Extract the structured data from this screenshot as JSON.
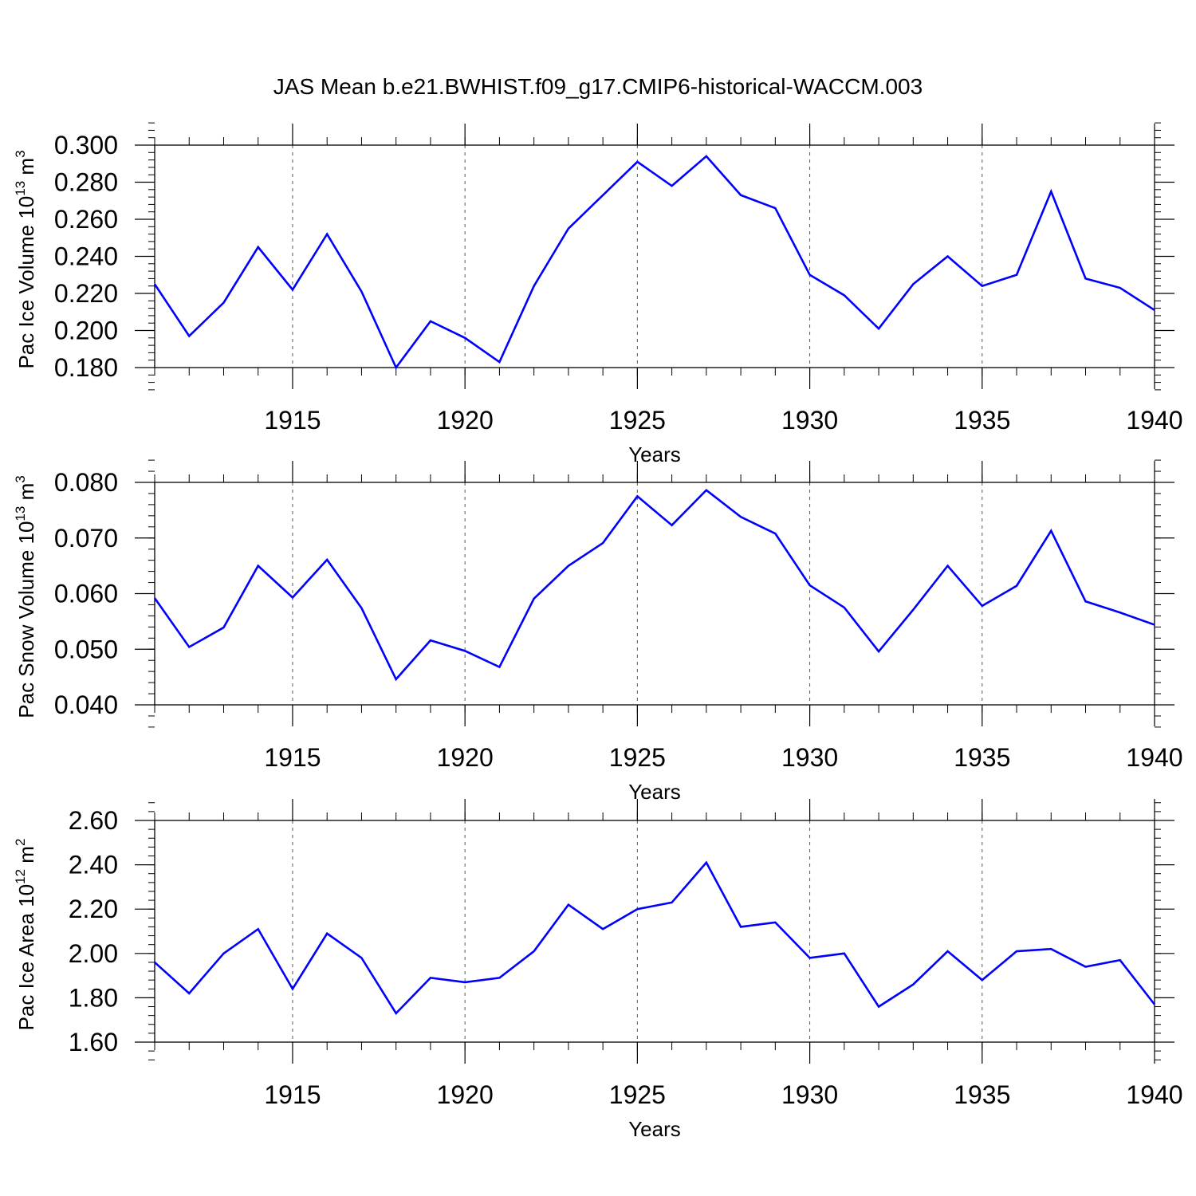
{
  "title": "JAS Mean b.e21.BWHIST.f09_g17.CMIP6-historical-WACCM.003",
  "line_color": "#0000ff",
  "chart_data": [
    {
      "type": "line",
      "ylabel": {
        "base": "Pac Ice Volume 10",
        "exp": "13",
        "unit": " m",
        "unit_exp": "3"
      },
      "xlabel": "Years",
      "xlim": [
        1911,
        1940
      ],
      "ylim": [
        0.18,
        0.3
      ],
      "yticks": [
        "0.180",
        "0.200",
        "0.220",
        "0.240",
        "0.260",
        "0.280",
        "0.300"
      ],
      "xticks": [
        "1915",
        "1920",
        "1925",
        "1930",
        "1935",
        "1940"
      ],
      "grid": "dashed vertical at labeled years",
      "x": [
        1911,
        1912,
        1913,
        1914,
        1915,
        1916,
        1917,
        1918,
        1919,
        1920,
        1921,
        1922,
        1923,
        1924,
        1925,
        1926,
        1927,
        1928,
        1929,
        1930,
        1931,
        1932,
        1933,
        1934,
        1935,
        1936,
        1937,
        1938,
        1939,
        1940
      ],
      "series": [
        {
          "values": [
            0.225,
            0.197,
            0.215,
            0.245,
            0.222,
            0.252,
            0.221,
            0.18,
            0.205,
            0.196,
            0.183,
            0.224,
            0.255,
            0.273,
            0.291,
            0.278,
            0.294,
            0.273,
            0.266,
            0.23,
            0.219,
            0.201,
            0.225,
            0.24,
            0.224,
            0.23,
            0.275,
            0.228,
            0.223,
            0.211
          ]
        }
      ]
    },
    {
      "type": "line",
      "ylabel": {
        "base": "Pac Snow Volume 10",
        "exp": "13",
        "unit": " m",
        "unit_exp": "3"
      },
      "xlabel": "Years",
      "xlim": [
        1911,
        1940
      ],
      "ylim": [
        0.04,
        0.08
      ],
      "yticks": [
        "0.040",
        "0.050",
        "0.060",
        "0.070",
        "0.080"
      ],
      "xticks": [
        "1915",
        "1920",
        "1925",
        "1930",
        "1935",
        "1940"
      ],
      "grid": "dashed vertical at labeled years",
      "x": [
        1911,
        1912,
        1913,
        1914,
        1915,
        1916,
        1917,
        1918,
        1919,
        1920,
        1921,
        1922,
        1923,
        1924,
        1925,
        1926,
        1927,
        1928,
        1929,
        1930,
        1931,
        1932,
        1933,
        1934,
        1935,
        1936,
        1937,
        1938,
        1939,
        1940
      ],
      "series": [
        {
          "values": [
            0.0592,
            0.0504,
            0.0539,
            0.065,
            0.0593,
            0.0661,
            0.0574,
            0.0446,
            0.0516,
            0.0497,
            0.0468,
            0.0591,
            0.065,
            0.0691,
            0.0775,
            0.0723,
            0.0786,
            0.0738,
            0.0708,
            0.0615,
            0.0575,
            0.0496,
            0.0571,
            0.065,
            0.0578,
            0.0614,
            0.0713,
            0.0586,
            0.0566,
            0.0544
          ]
        }
      ]
    },
    {
      "type": "line",
      "ylabel": {
        "base": "Pac Ice Area 10",
        "exp": "12",
        "unit": " m",
        "unit_exp": "2"
      },
      "xlabel": "Years",
      "xlim": [
        1911,
        1940
      ],
      "ylim": [
        1.6,
        2.6
      ],
      "yticks": [
        "1.60",
        "1.80",
        "2.00",
        "2.20",
        "2.40",
        "2.60"
      ],
      "xticks": [
        "1915",
        "1920",
        "1925",
        "1930",
        "1935",
        "1940"
      ],
      "grid": "dashed vertical at labeled years",
      "x": [
        1911,
        1912,
        1913,
        1914,
        1915,
        1916,
        1917,
        1918,
        1919,
        1920,
        1921,
        1922,
        1923,
        1924,
        1925,
        1926,
        1927,
        1928,
        1929,
        1930,
        1931,
        1932,
        1933,
        1934,
        1935,
        1936,
        1937,
        1938,
        1939,
        1940
      ],
      "series": [
        {
          "values": [
            1.96,
            1.82,
            2.0,
            2.11,
            1.84,
            2.09,
            1.98,
            1.73,
            1.89,
            1.87,
            1.89,
            2.01,
            2.22,
            2.11,
            2.2,
            2.23,
            2.41,
            2.12,
            2.14,
            1.98,
            2.0,
            1.76,
            1.86,
            2.01,
            1.88,
            2.01,
            2.02,
            1.94,
            1.97,
            1.77
          ]
        }
      ]
    }
  ]
}
